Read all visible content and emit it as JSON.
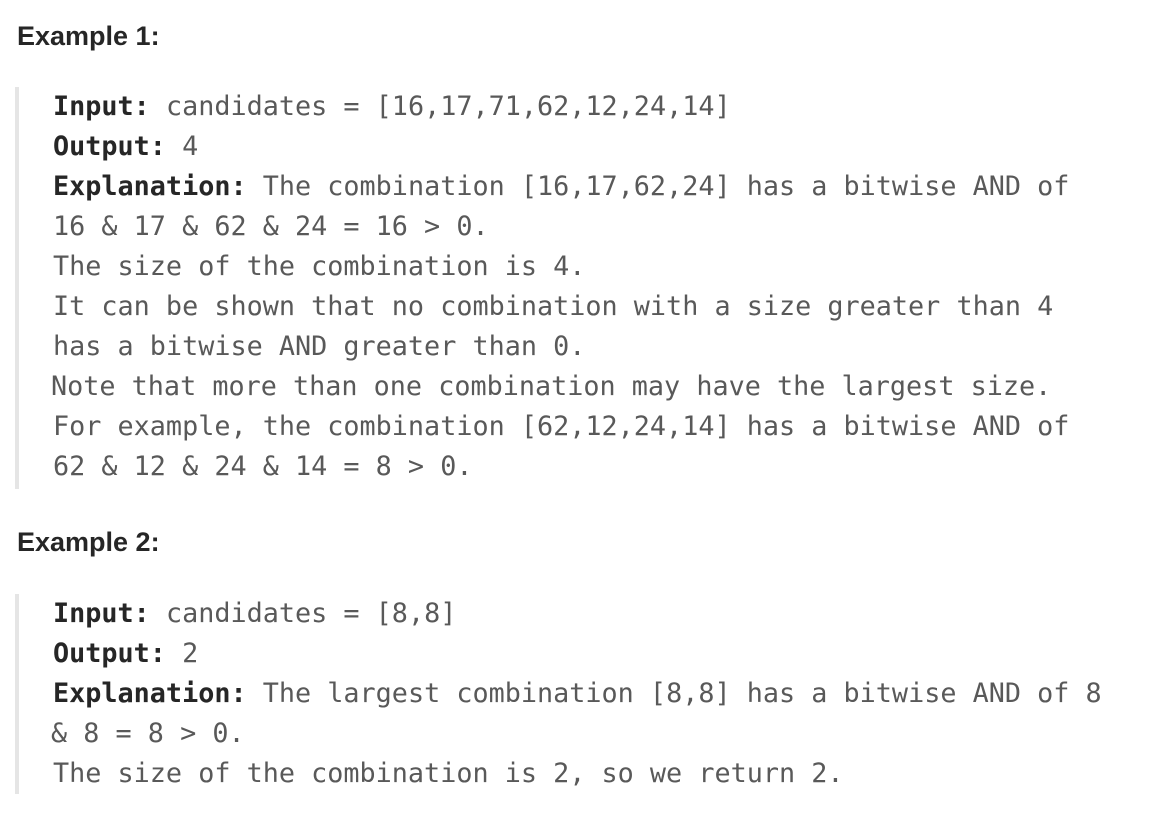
{
  "example1": {
    "heading": "Example 1:",
    "input_label": "Input:",
    "input_value": " candidates = [16,17,71,62,12,24,14]",
    "output_label": "Output:",
    "output_value": " 4",
    "explanation_label": "Explanation:",
    "explanation_value": " The combination [16,17,62,24] has a bitwise AND of",
    "lines": [
      "16 & 17 & 62 & 24 = 16 > 0.",
      "The size of the combination is 4.",
      "It can be shown that no combination with a size greater than 4",
      "has a bitwise AND greater than 0.",
      "Note that more than one combination may have the largest size.",
      "For example, the combination [62,12,24,14] has a bitwise AND of",
      "62 & 12 & 24 & 14 = 8 > 0."
    ]
  },
  "example2": {
    "heading": "Example 2:",
    "input_label": "Input:",
    "input_value": " candidates = [8,8]",
    "output_label": "Output:",
    "output_value": " 2",
    "explanation_label": "Explanation:",
    "explanation_value": " The largest combination [8,8] has a bitwise AND of 8",
    "lines": [
      "& 8 = 8 > 0.",
      "The size of the combination is 2, so we return 2."
    ]
  }
}
